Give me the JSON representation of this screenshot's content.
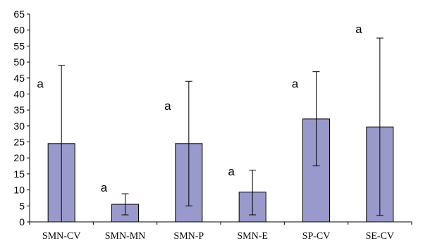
{
  "chart_data": {
    "type": "bar",
    "categories": [
      "SMN-CV",
      "SMN-MN",
      "SMN-P",
      "SMN-E",
      "SP-CV",
      "SE-CV"
    ],
    "values": [
      24.5,
      5.5,
      24.5,
      9.3,
      32.2,
      29.7
    ],
    "error_low": [
      0,
      2.2,
      5,
      2.2,
      17.5,
      2
    ],
    "error_high": [
      49,
      8.8,
      44,
      16.2,
      47,
      57.5
    ],
    "annotations": [
      "a",
      "a",
      "a",
      "a",
      "a",
      "a"
    ],
    "annotation_y": [
      42,
      9.5,
      35,
      14.5,
      42,
      59
    ],
    "ylim": [
      0,
      65
    ],
    "yticks": [
      0,
      5,
      10,
      15,
      20,
      25,
      30,
      35,
      40,
      45,
      50,
      55,
      60,
      65
    ],
    "xlabel": "",
    "ylabel": "",
    "title": "",
    "grid": false,
    "colors": {
      "bar_fill": "#9999cc",
      "bar_stroke": "#000000",
      "axis": "#000000"
    }
  }
}
